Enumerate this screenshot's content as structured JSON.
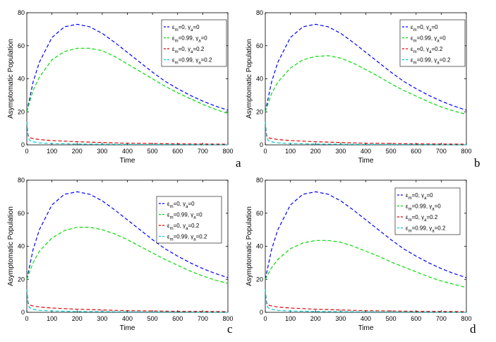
{
  "chart_data": [
    {
      "type": "line",
      "panel_label": "a",
      "xlabel": "Time",
      "ylabel": "Asymptomatic Population",
      "xlim": [
        0,
        800
      ],
      "ylim": [
        0,
        80
      ],
      "xticks": [
        "0",
        "100",
        "200",
        "300",
        "400",
        "500",
        "600",
        "700",
        "800"
      ],
      "yticks": [
        "0",
        "20",
        "40",
        "60",
        "80"
      ],
      "legend_position": "top-right",
      "series": [
        {
          "name": "εm=0, γa=0",
          "legend_main": "ε",
          "legend_parts": [
            [
              "m",
              "=0, γ"
            ],
            [
              "a",
              "=0"
            ]
          ],
          "color": "#0000ff",
          "x": [
            0,
            25,
            50,
            100,
            150,
            200,
            250,
            300,
            350,
            400,
            450,
            500,
            550,
            600,
            650,
            700,
            750,
            800
          ],
          "values": [
            20,
            38,
            50,
            65,
            71.5,
            73,
            71.5,
            67.5,
            62,
            56,
            50,
            44,
            38.5,
            34,
            30,
            26.5,
            23.5,
            21
          ]
        },
        {
          "name": "εm=0.99, γa=0",
          "legend_main": "ε",
          "legend_parts": [
            [
              "m",
              "=0.99, γ"
            ],
            [
              "a",
              "=0"
            ]
          ],
          "color": "#00dd00",
          "x": [
            0,
            25,
            50,
            100,
            150,
            200,
            250,
            300,
            350,
            400,
            450,
            500,
            550,
            600,
            650,
            700,
            750,
            800
          ],
          "values": [
            20,
            33,
            41,
            51.5,
            56.5,
            58.5,
            58.5,
            57,
            53.5,
            49,
            44.5,
            40,
            35.5,
            31.5,
            28,
            24.5,
            21.5,
            19
          ]
        },
        {
          "name": "εm=0, γa=0.2",
          "legend_main": "ε",
          "legend_parts": [
            [
              "m",
              "=0, γ"
            ],
            [
              "a",
              "=0.2"
            ]
          ],
          "color": "#dd0000",
          "x": [
            0,
            5,
            10,
            20,
            50,
            100,
            200,
            300,
            400,
            500,
            600,
            700,
            800
          ],
          "values": [
            14,
            6,
            4.5,
            4,
            3.2,
            2.6,
            1.9,
            1.4,
            1,
            0.8,
            0.6,
            0.5,
            0.4
          ]
        },
        {
          "name": "εm=0.99, γa=0.2",
          "legend_main": "ε",
          "legend_parts": [
            [
              "m",
              "=0.99, γ"
            ],
            [
              "a",
              "=0.2"
            ]
          ],
          "color": "#00cccc",
          "x": [
            0,
            5,
            10,
            20,
            50,
            100,
            200,
            300,
            400,
            500,
            600,
            700,
            800
          ],
          "values": [
            14,
            5,
            3,
            2,
            1.2,
            0.8,
            0.5,
            0.4,
            0.3,
            0.2,
            0.2,
            0.1,
            0.1
          ]
        }
      ]
    },
    {
      "type": "line",
      "panel_label": "b",
      "xlabel": "Time",
      "ylabel": "Asymptomatic Population",
      "xlim": [
        0,
        800
      ],
      "ylim": [
        0,
        80
      ],
      "xticks": [
        "0",
        "100",
        "200",
        "300",
        "400",
        "500",
        "600",
        "700",
        "800"
      ],
      "yticks": [
        "0",
        "20",
        "40",
        "60",
        "80"
      ],
      "legend_position": "top-right",
      "series": [
        {
          "name": "εm=0, γa=0",
          "legend_main": "ε",
          "legend_parts": [
            [
              "m",
              "=0, γ"
            ],
            [
              "a",
              "=0"
            ]
          ],
          "color": "#0000ff",
          "x": [
            0,
            25,
            50,
            100,
            150,
            200,
            250,
            300,
            350,
            400,
            450,
            500,
            550,
            600,
            650,
            700,
            750,
            800
          ],
          "values": [
            20,
            38,
            50,
            65,
            71.5,
            73,
            71.5,
            67.5,
            62,
            56,
            50,
            44,
            38.5,
            34,
            30,
            26.5,
            23.5,
            21
          ]
        },
        {
          "name": "εm=0.99, γa=0",
          "legend_main": "ε",
          "legend_parts": [
            [
              "m",
              "=0.99, γ"
            ],
            [
              "a",
              "=0"
            ]
          ],
          "color": "#00dd00",
          "x": [
            0,
            25,
            50,
            100,
            150,
            200,
            250,
            300,
            350,
            400,
            450,
            500,
            550,
            600,
            650,
            700,
            750,
            800
          ],
          "values": [
            20,
            31,
            38,
            46.5,
            51.5,
            53.5,
            54,
            52.5,
            49.5,
            45.5,
            41.5,
            37,
            33,
            29.5,
            26,
            23,
            20.5,
            18.5
          ]
        },
        {
          "name": "εm=0, γa=0.2",
          "legend_main": "ε",
          "legend_parts": [
            [
              "m",
              "=0, γ"
            ],
            [
              "a",
              "=0.2"
            ]
          ],
          "color": "#dd0000",
          "x": [
            0,
            5,
            10,
            20,
            50,
            100,
            200,
            300,
            400,
            500,
            600,
            700,
            800
          ],
          "values": [
            14,
            6,
            4.5,
            4,
            3.2,
            2.6,
            1.9,
            1.4,
            1,
            0.8,
            0.6,
            0.5,
            0.4
          ]
        },
        {
          "name": "εm=0.99, γa=0.2",
          "legend_main": "ε",
          "legend_parts": [
            [
              "m",
              "=0.99, γ"
            ],
            [
              "a",
              "=0.2"
            ]
          ],
          "color": "#00cccc",
          "x": [
            0,
            5,
            10,
            20,
            50,
            100,
            200,
            300,
            400,
            500,
            600,
            700,
            800
          ],
          "values": [
            14,
            5,
            3,
            2,
            1.2,
            0.8,
            0.5,
            0.4,
            0.3,
            0.2,
            0.2,
            0.1,
            0.1
          ]
        }
      ]
    },
    {
      "type": "line",
      "panel_label": "c",
      "xlabel": "Time",
      "ylabel": "Asymptomatic Population",
      "xlim": [
        0,
        800
      ],
      "ylim": [
        0,
        80
      ],
      "xticks": [
        "0",
        "100",
        "200",
        "300",
        "400",
        "500",
        "600",
        "700",
        "800"
      ],
      "yticks": [
        "0",
        "20",
        "40",
        "60",
        "80"
      ],
      "legend_position": "top-right",
      "series": [
        {
          "name": "εm=0, γa=0",
          "legend_main": "ε",
          "legend_parts": [
            [
              "m",
              "=0, γ"
            ],
            [
              "a",
              "=0"
            ]
          ],
          "color": "#0000ff",
          "x": [
            0,
            25,
            50,
            100,
            150,
            200,
            250,
            300,
            350,
            400,
            450,
            500,
            550,
            600,
            650,
            700,
            750,
            800
          ],
          "values": [
            20,
            38,
            50,
            65,
            71.5,
            73,
            71.5,
            67.5,
            62,
            56,
            50,
            44,
            38.5,
            34,
            30,
            26.5,
            23.5,
            21
          ]
        },
        {
          "name": "εm=0.99, γa=0",
          "legend_main": "ε",
          "legend_parts": [
            [
              "m",
              "=0.99, γ"
            ],
            [
              "a",
              "=0"
            ]
          ],
          "color": "#00dd00",
          "x": [
            0,
            25,
            50,
            100,
            150,
            200,
            250,
            300,
            350,
            400,
            450,
            500,
            550,
            600,
            650,
            700,
            750,
            800
          ],
          "values": [
            20,
            30,
            37,
            45,
            49.5,
            51.5,
            51.5,
            50,
            47.5,
            44,
            40,
            36,
            32,
            28.5,
            25,
            22,
            19.5,
            17.5
          ]
        },
        {
          "name": "εm=0, γa=0.2",
          "legend_main": "ε",
          "legend_parts": [
            [
              "m",
              "=0, γ"
            ],
            [
              "a",
              "=0.2"
            ]
          ],
          "color": "#dd0000",
          "x": [
            0,
            5,
            10,
            20,
            50,
            100,
            200,
            300,
            400,
            500,
            600,
            700,
            800
          ],
          "values": [
            14,
            6,
            4.5,
            4,
            3.2,
            2.6,
            1.9,
            1.4,
            1,
            0.8,
            0.6,
            0.5,
            0.4
          ]
        },
        {
          "name": "εm=0.99, γa=0.2",
          "legend_main": "ε",
          "legend_parts": [
            [
              "m",
              "=0.99, γ"
            ],
            [
              "a",
              "=0.2"
            ]
          ],
          "color": "#00cccc",
          "x": [
            0,
            5,
            10,
            20,
            50,
            100,
            200,
            300,
            400,
            500,
            600,
            700,
            800
          ],
          "values": [
            14,
            5,
            3,
            2,
            1.2,
            0.8,
            0.5,
            0.4,
            0.3,
            0.2,
            0.2,
            0.1,
            0.1
          ]
        }
      ]
    },
    {
      "type": "line",
      "panel_label": "d",
      "xlabel": "Time",
      "ylabel": "Asymptomatic Population",
      "xlim": [
        0,
        800
      ],
      "ylim": [
        0,
        80
      ],
      "xticks": [
        "0",
        "100",
        "200",
        "300",
        "400",
        "500",
        "600",
        "700",
        "800"
      ],
      "yticks": [
        "0",
        "20",
        "40",
        "60",
        "80"
      ],
      "legend_position": "top-right",
      "series": [
        {
          "name": "εm=0, γa=0",
          "legend_main": "ε",
          "legend_parts": [
            [
              "m",
              "=0, γ"
            ],
            [
              "a",
              "=0"
            ]
          ],
          "color": "#0000ff",
          "x": [
            0,
            25,
            50,
            100,
            150,
            200,
            250,
            300,
            350,
            400,
            450,
            500,
            550,
            600,
            650,
            700,
            750,
            800
          ],
          "values": [
            20,
            38,
            50,
            65,
            71.5,
            73,
            71.5,
            67.5,
            62,
            56,
            50,
            44,
            38.5,
            34,
            30,
            26.5,
            23.5,
            21
          ]
        },
        {
          "name": "εm=0.99, γa=0",
          "legend_main": "ε",
          "legend_parts": [
            [
              "m",
              "=0.99, γ"
            ],
            [
              "a",
              "=0"
            ]
          ],
          "color": "#00dd00",
          "x": [
            0,
            25,
            50,
            100,
            150,
            200,
            250,
            300,
            350,
            400,
            450,
            500,
            550,
            600,
            650,
            700,
            750,
            800
          ],
          "values": [
            20,
            27,
            32,
            38.5,
            42,
            43.5,
            43.5,
            42.5,
            40,
            37,
            34,
            30.5,
            27.5,
            24.5,
            21.5,
            19,
            17,
            15
          ]
        },
        {
          "name": "εm=0, γa=0.2",
          "legend_main": "ε",
          "legend_parts": [
            [
              "m",
              "=0, γ"
            ],
            [
              "a",
              "=0.2"
            ]
          ],
          "color": "#dd0000",
          "x": [
            0,
            5,
            10,
            20,
            50,
            100,
            200,
            300,
            400,
            500,
            600,
            700,
            800
          ],
          "values": [
            14,
            6,
            4.5,
            4,
            3.2,
            2.6,
            1.9,
            1.4,
            1,
            0.8,
            0.6,
            0.5,
            0.4
          ]
        },
        {
          "name": "εm=0.99, γa=0.2",
          "legend_main": "ε",
          "legend_parts": [
            [
              "m",
              "=0.99, γ"
            ],
            [
              "a",
              "=0.2"
            ]
          ],
          "color": "#00cccc",
          "x": [
            0,
            5,
            10,
            20,
            50,
            100,
            200,
            300,
            400,
            500,
            600,
            700,
            800
          ],
          "values": [
            14,
            5,
            3,
            2,
            1.2,
            0.8,
            0.5,
            0.4,
            0.3,
            0.2,
            0.2,
            0.1,
            0.1
          ]
        }
      ]
    }
  ]
}
